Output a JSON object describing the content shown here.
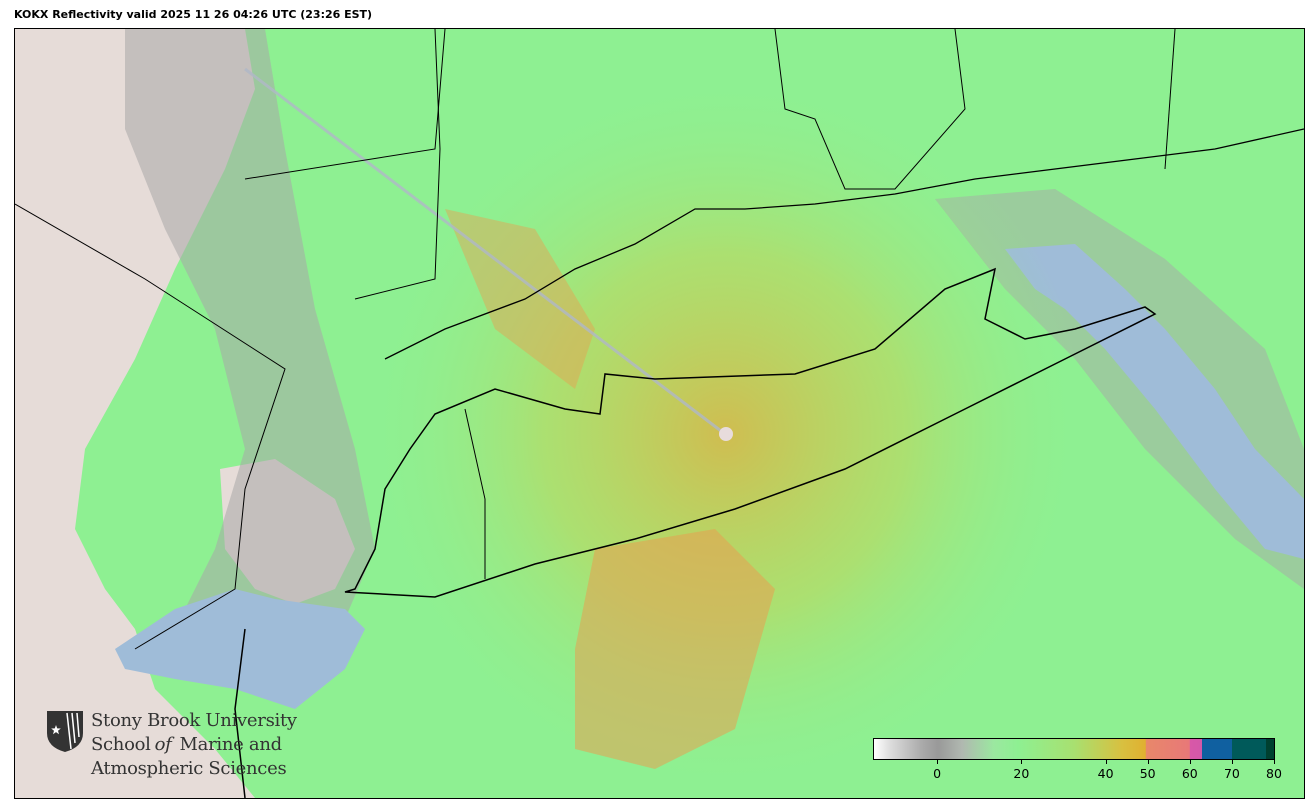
{
  "title": "KOKX Reflectivity valid 2025 11 26 04:26 UTC (23:26 EST)",
  "logo": {
    "line1": "Stony Brook University",
    "line2a": "School ",
    "line2b": "of",
    "line2c": " Marine and",
    "line3": "Atmospheric Sciences"
  },
  "colorbar": {
    "min": -15,
    "max": 80,
    "ticks": [
      "0",
      "20",
      "40",
      "50",
      "60",
      "70",
      "80"
    ],
    "tick_values": [
      0,
      20,
      40,
      50,
      60,
      70,
      80
    ],
    "colors": {
      "low": "#ffffff",
      "gray": "#999999",
      "green": "#8ef092",
      "yellow": "#e0b030",
      "orange": "#e8886a",
      "pink": "#d858a8",
      "purple": "#9850b8",
      "blue": "#1060a0",
      "teal": "#005a5a",
      "dark": "#004030"
    }
  },
  "map": {
    "colors": {
      "land": "#e6dcd8",
      "water": "#9fbcd8",
      "echo_low": "#8ef092",
      "echo_mid": "#e0b030",
      "echo_high": "#e8886a",
      "clutter": "#9a9a9a"
    }
  }
}
